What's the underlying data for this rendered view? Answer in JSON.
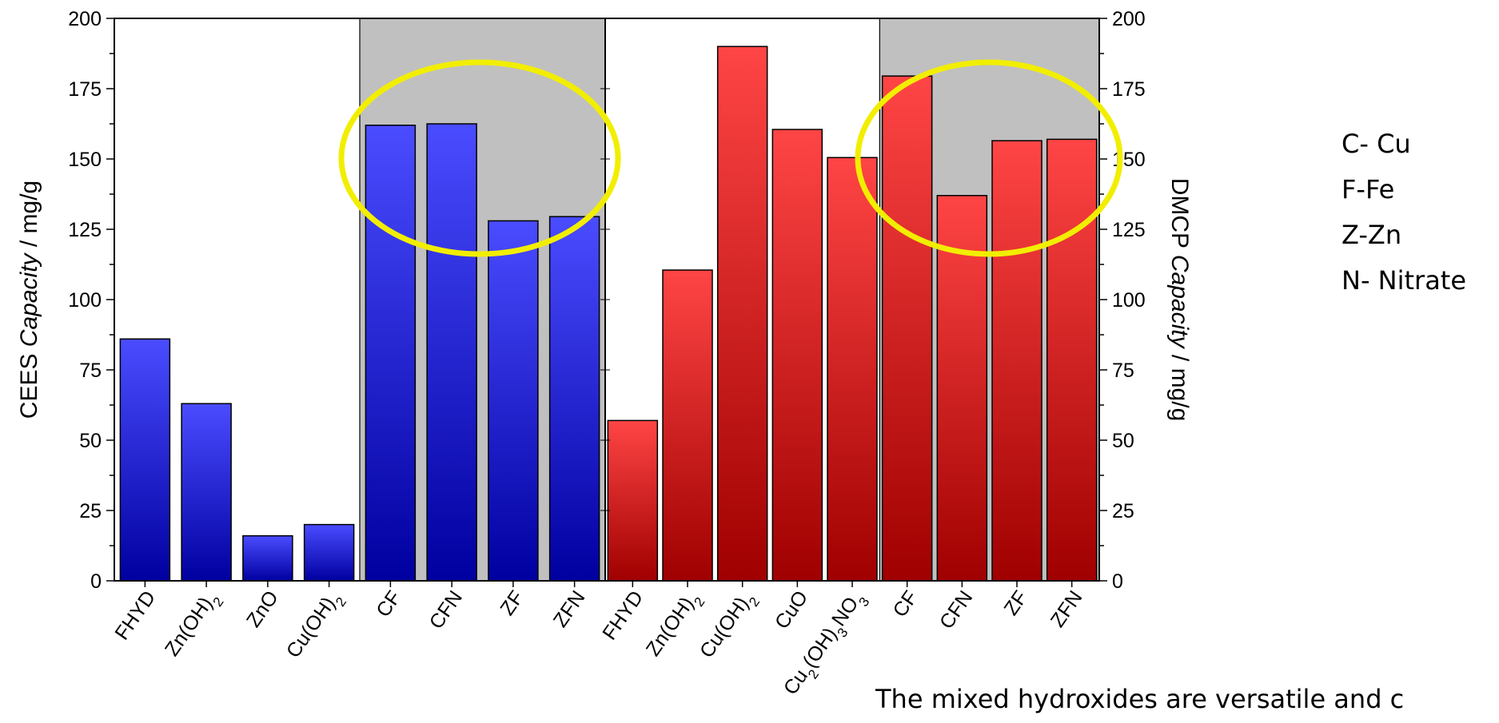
{
  "chart_data": {
    "type": "bar",
    "y_left": {
      "label_prefix": "CEES",
      "label_italic": "Capacity",
      "label_suffix": " / mg/g",
      "lim": [
        0,
        200
      ],
      "ticks": [
        0,
        25,
        50,
        75,
        100,
        125,
        150,
        175,
        200
      ]
    },
    "y_right": {
      "label_prefix": "DMCP",
      "label_italic": "Capacity",
      "label_suffix": " / mg/g",
      "lim": [
        0,
        200
      ],
      "ticks": [
        0,
        25,
        50,
        75,
        100,
        125,
        150,
        175,
        200
      ]
    },
    "series": [
      {
        "axis": "left",
        "color_top": "#4a4cff",
        "color_bottom": "#0000a0",
        "categories": [
          {
            "main": "FHYD"
          },
          {
            "main": "Zn(OH)",
            "sub": "2"
          },
          {
            "main": "ZnO"
          },
          {
            "main": "Cu(OH)",
            "sub": "2"
          },
          {
            "main": "CF"
          },
          {
            "main": "CFN"
          },
          {
            "main": "ZF"
          },
          {
            "main": "ZFN"
          }
        ],
        "values": [
          86,
          63,
          16,
          20,
          162,
          162.5,
          128,
          129.5
        ]
      },
      {
        "axis": "right",
        "color_top": "#ff4545",
        "color_bottom": "#a00000",
        "categories": [
          {
            "main": "FHYD"
          },
          {
            "main": "Zn(OH)",
            "sub": "2"
          },
          {
            "main": "Cu(OH)",
            "sub": "2"
          },
          {
            "main": "CuO"
          },
          {
            "parts": [
              [
                "Cu",
                ""
              ],
              [
                "2",
                "sub"
              ],
              [
                "(OH)",
                ""
              ],
              [
                "3",
                "sub"
              ],
              [
                "NO",
                ""
              ],
              [
                "3",
                "sub"
              ]
            ]
          },
          {
            "main": "CF"
          },
          {
            "main": "CFN"
          },
          {
            "main": "ZF"
          },
          {
            "main": "ZFN"
          }
        ],
        "values": [
          57,
          110.5,
          190,
          160.5,
          150.5,
          179.5,
          137,
          156.5,
          157
        ]
      }
    ],
    "shaded_groups": [
      "CF, CFN, ZF, ZFN (left)",
      "CF, CFN, ZF, ZFN (right)"
    ],
    "highlight_color": "#f2ee00",
    "shade_color": "#c0c0c0"
  },
  "legend": [
    "C- Cu",
    "F-Fe",
    "Z-Zn",
    "N- Nitrate"
  ],
  "caption": "The mixed hydroxides are versatile and c"
}
